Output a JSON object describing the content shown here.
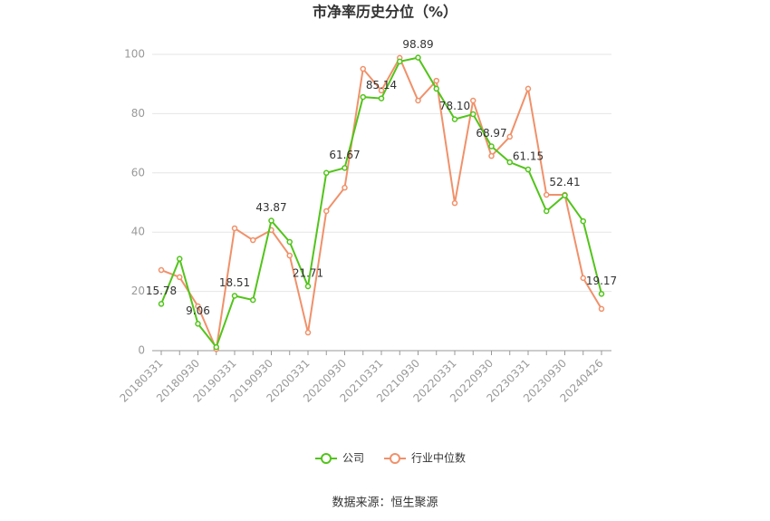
{
  "chart_data": {
    "type": "line",
    "title": "市净率历史分位（%）",
    "categories": [
      "20180331",
      null,
      "20180930",
      null,
      "20190331",
      null,
      "20190930",
      null,
      "20200331",
      null,
      "20200930",
      null,
      "20210331",
      null,
      "20210930",
      null,
      "20220331",
      null,
      "20220930",
      null,
      "20230331",
      null,
      "20230930",
      null,
      "20240426"
    ],
    "series": [
      {
        "name": "公司",
        "color": "#52c41a",
        "values": [
          15.78,
          31,
          9.06,
          1.2,
          18.51,
          17.1,
          43.87,
          36.7,
          21.71,
          60,
          61.67,
          85.6,
          85.14,
          97.6,
          98.89,
          88.4,
          78.1,
          79.8,
          68.97,
          63.6,
          61.15,
          47.1,
          52.41,
          43.7,
          19.17
        ],
        "value_labels": [
          "15.78",
          null,
          "9.06",
          null,
          "18.51",
          null,
          "43.87",
          null,
          "21.71",
          null,
          "61.67",
          null,
          "85.14",
          null,
          "98.89",
          null,
          "78.10",
          null,
          "68.97",
          null,
          "61.15",
          null,
          "52.41",
          null,
          "19.17"
        ]
      },
      {
        "name": "行业中位数",
        "color": "#f0916a",
        "values": [
          27.2,
          24.8,
          15,
          0.5,
          41.3,
          37.3,
          40.7,
          32.1,
          6.1,
          47.1,
          55,
          95.1,
          87.8,
          98.8,
          84.4,
          91.1,
          49.8,
          84.4,
          65.7,
          72.2,
          88.4,
          52.6,
          52.6,
          24.5,
          14.1
        ]
      }
    ],
    "ylim": [
      0,
      100
    ],
    "yticks": [
      0,
      20,
      40,
      60,
      80,
      100
    ],
    "grid": true,
    "legend": "bottom",
    "source": "数据来源：恒生聚源"
  }
}
